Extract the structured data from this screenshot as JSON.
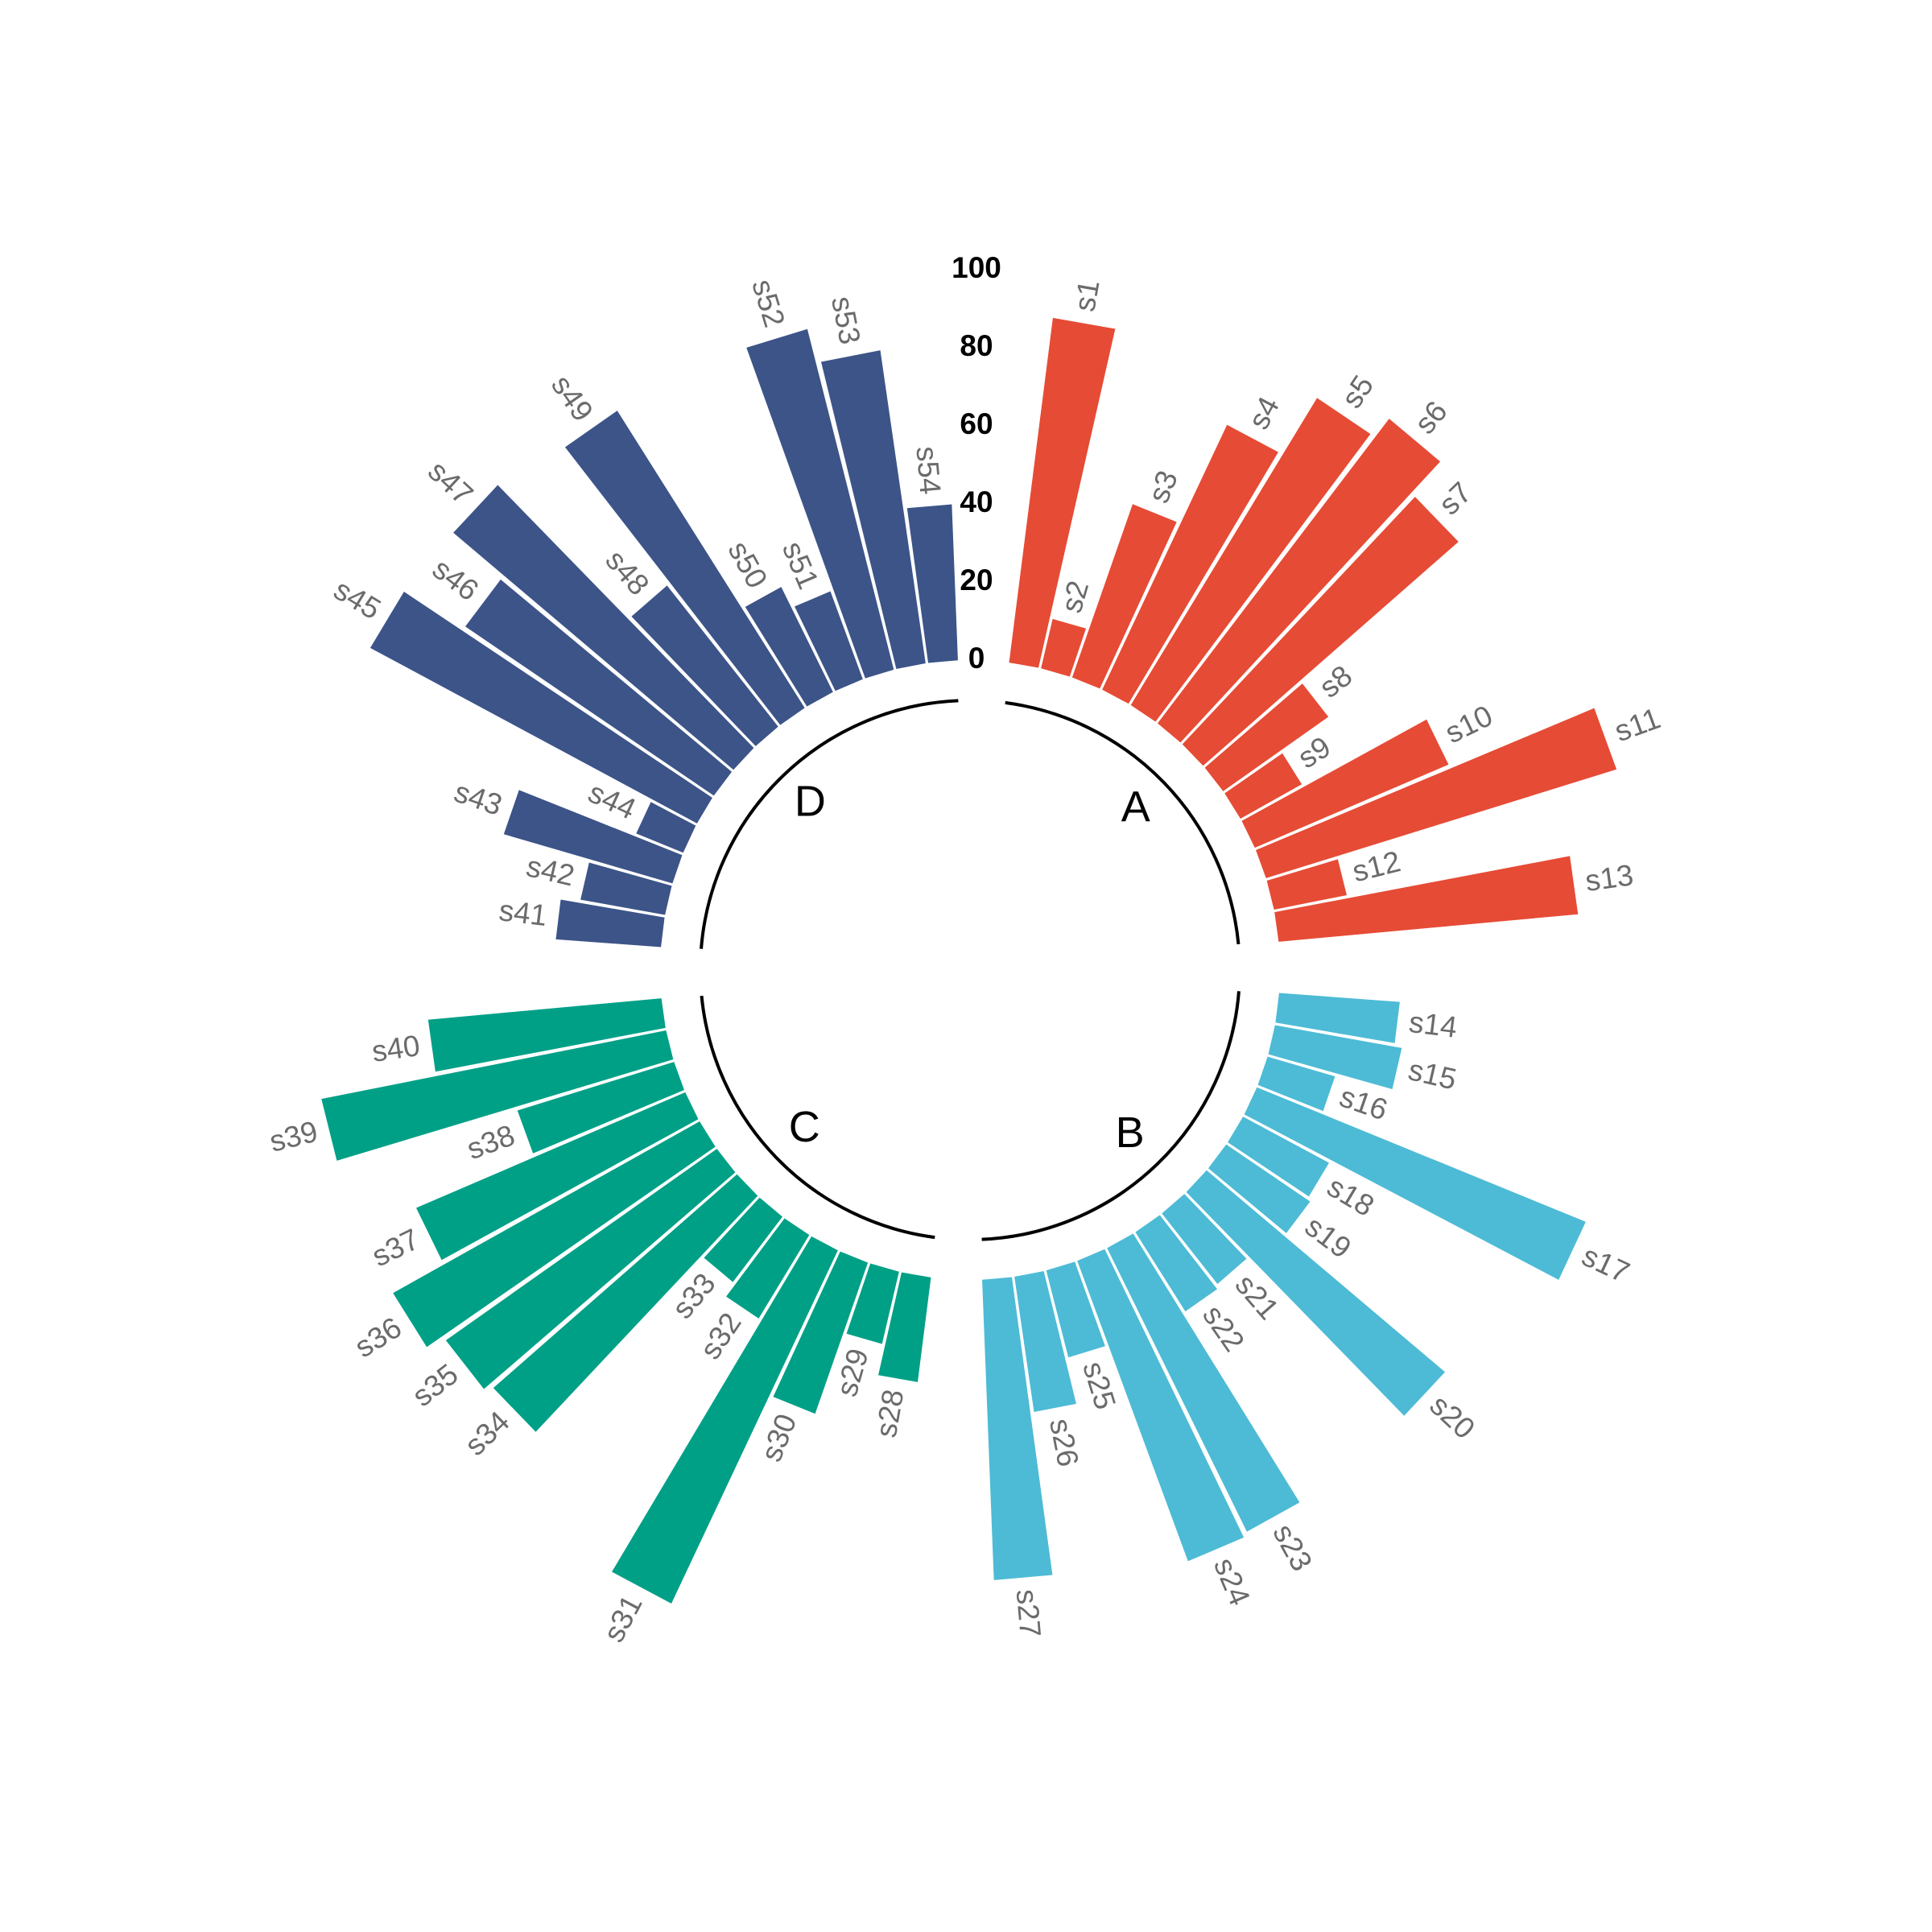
{
  "chart_data": {
    "type": "circular_bar",
    "ylim": [
      0,
      100
    ],
    "yticks": [
      0,
      20,
      40,
      60,
      80,
      100
    ],
    "series": [
      {
        "name": "A",
        "color": "#E64B35",
        "categories": [
          "s1",
          "s2",
          "s3",
          "s4",
          "s5",
          "s6",
          "s7",
          "s8",
          "s9",
          "s10",
          "s11",
          "s12",
          "s13"
        ],
        "values": [
          89,
          13,
          47,
          75,
          92,
          98,
          87,
          33,
          18,
          54,
          94,
          19,
          77
        ]
      },
      {
        "name": "B",
        "color": "#4DBBD5",
        "categories": [
          "s14",
          "s15",
          "s16",
          "s17",
          "s18",
          "s19",
          "s20",
          "s21",
          "s22",
          "s23",
          "s24",
          "s25",
          "s26",
          "s27"
        ],
        "values": [
          31,
          33,
          18,
          91,
          25,
          26,
          80,
          23,
          24,
          81,
          82,
          23,
          35,
          77
        ]
      },
      {
        "name": "C",
        "color": "#00A087",
        "categories": [
          "s28",
          "s29",
          "s30",
          "s31",
          "s32",
          "s33",
          "s34",
          "s35",
          "s36",
          "s37",
          "s38",
          "s39",
          "s40"
        ],
        "values": [
          27,
          19,
          41,
          100,
          25,
          21,
          83,
          85,
          90,
          75,
          42,
          90,
          60
        ]
      },
      {
        "name": "D",
        "color": "#3C5488",
        "categories": [
          "s41",
          "s42",
          "s43",
          "s44",
          "s45",
          "s46",
          "s47",
          "s48",
          "s49",
          "s50",
          "s51",
          "s52",
          "s53",
          "s54"
        ],
        "values": [
          27,
          22,
          45,
          13,
          95,
          77,
          94,
          46,
          90,
          30,
          24,
          90,
          81,
          40
        ]
      }
    ]
  }
}
